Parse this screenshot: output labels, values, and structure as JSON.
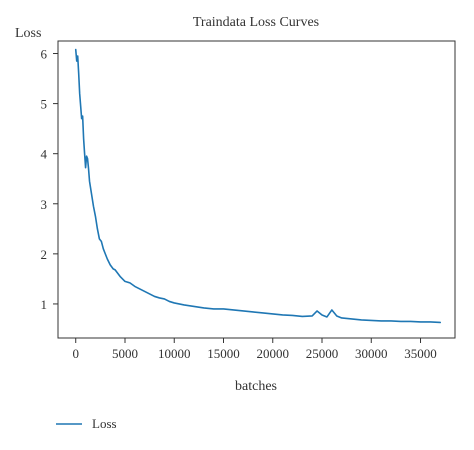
{
  "chart_data": {
    "type": "line",
    "title": "Traindata Loss Curves",
    "xlabel": "batches",
    "ylabel": "Loss",
    "xlim": [
      -1800,
      38500
    ],
    "ylim": [
      0.32,
      6.25
    ],
    "xticks": [
      0,
      5000,
      10000,
      15000,
      20000,
      25000,
      30000,
      35000
    ],
    "xtick_labels": [
      "0",
      "5000",
      "10000",
      "15000",
      "20000",
      "25000",
      "30000",
      "35000"
    ],
    "yticks": [
      1,
      2,
      3,
      4,
      5,
      6
    ],
    "ytick_labels": [
      "1",
      "2",
      "3",
      "4",
      "5",
      "6"
    ],
    "grid": false,
    "legend_position": "bottom-left",
    "series": [
      {
        "name": "Loss",
        "color": "#1f77b4",
        "x": [
          0,
          100,
          200,
          300,
          400,
          500,
          600,
          700,
          800,
          900,
          1000,
          1100,
          1200,
          1300,
          1400,
          1600,
          1800,
          2000,
          2200,
          2400,
          2600,
          2800,
          3000,
          3200,
          3500,
          3800,
          4000,
          4500,
          5000,
          5500,
          6000,
          6500,
          7000,
          7500,
          8000,
          8500,
          9000,
          9500,
          10000,
          11000,
          12000,
          13000,
          14000,
          15000,
          16000,
          17000,
          18000,
          19000,
          20000,
          21000,
          22000,
          23000,
          24000,
          24500,
          25000,
          25500,
          26000,
          26500,
          27000,
          28000,
          29000,
          30000,
          31000,
          32000,
          33000,
          34000,
          35000,
          36000,
          37000
        ],
        "values": [
          6.08,
          5.85,
          5.95,
          5.6,
          5.2,
          4.95,
          4.7,
          4.75,
          4.3,
          4.0,
          3.72,
          3.95,
          3.9,
          3.7,
          3.45,
          3.2,
          2.95,
          2.75,
          2.5,
          2.3,
          2.25,
          2.1,
          2.0,
          1.9,
          1.78,
          1.7,
          1.68,
          1.55,
          1.45,
          1.42,
          1.35,
          1.3,
          1.25,
          1.2,
          1.15,
          1.12,
          1.1,
          1.05,
          1.02,
          0.98,
          0.95,
          0.92,
          0.9,
          0.9,
          0.88,
          0.86,
          0.84,
          0.82,
          0.8,
          0.78,
          0.77,
          0.75,
          0.76,
          0.86,
          0.78,
          0.74,
          0.88,
          0.76,
          0.72,
          0.7,
          0.68,
          0.67,
          0.66,
          0.66,
          0.65,
          0.65,
          0.64,
          0.64,
          0.63
        ]
      }
    ]
  }
}
